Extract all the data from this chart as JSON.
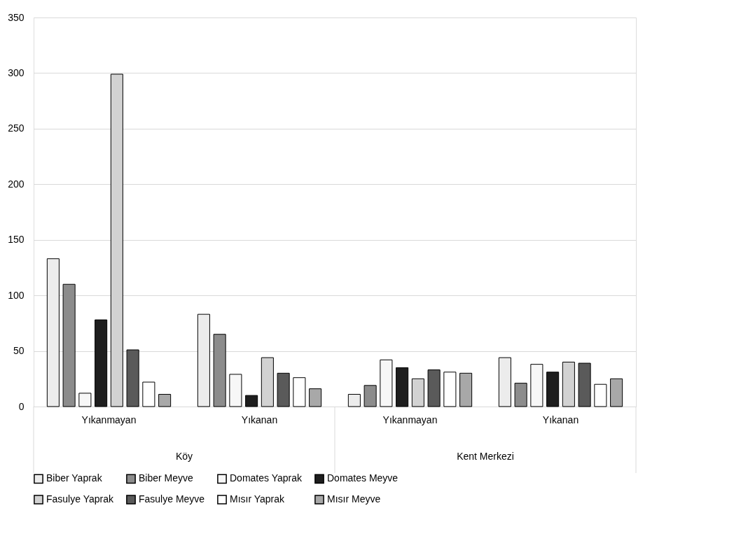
{
  "chart_data": {
    "type": "bar",
    "categories": [
      "Yıkanmayan",
      "Yıkanan",
      "Yıkanmayan",
      "Yıkanan"
    ],
    "annotations": [
      "Köy",
      "Kent Merkezi"
    ],
    "ylim": [
      0,
      350
    ],
    "yticks": [
      0,
      50,
      100,
      150,
      200,
      250,
      300,
      350
    ],
    "grid": "y",
    "legend": "bottom",
    "series": [
      {
        "name": "Biber Yaprak",
        "color": "#ececec",
        "values": [
          133,
          83,
          11,
          44
        ]
      },
      {
        "name": "Biber Meyve",
        "color": "#8c8c8c",
        "values": [
          110,
          65,
          19,
          21
        ]
      },
      {
        "name": "Domates Yaprak",
        "color": "#f7f7f7",
        "values": [
          12,
          29,
          42,
          38
        ]
      },
      {
        "name": "Domates Meyve",
        "color": "#1e1e1e",
        "values": [
          78,
          10,
          35,
          31
        ]
      },
      {
        "name": "Fasulye Yaprak",
        "color": "#d2d2d2",
        "values": [
          299,
          44,
          25,
          40
        ]
      },
      {
        "name": "Fasulye Meyve",
        "color": "#5a5a5a",
        "values": [
          51,
          30,
          33,
          39
        ]
      },
      {
        "name": "Mısır Yaprak",
        "color": "#ffffff",
        "values": [
          22,
          26,
          31,
          20
        ]
      },
      {
        "name": "Mısır Meyve",
        "color": "#a8a8a8",
        "values": [
          11,
          16,
          30,
          25
        ]
      }
    ]
  }
}
